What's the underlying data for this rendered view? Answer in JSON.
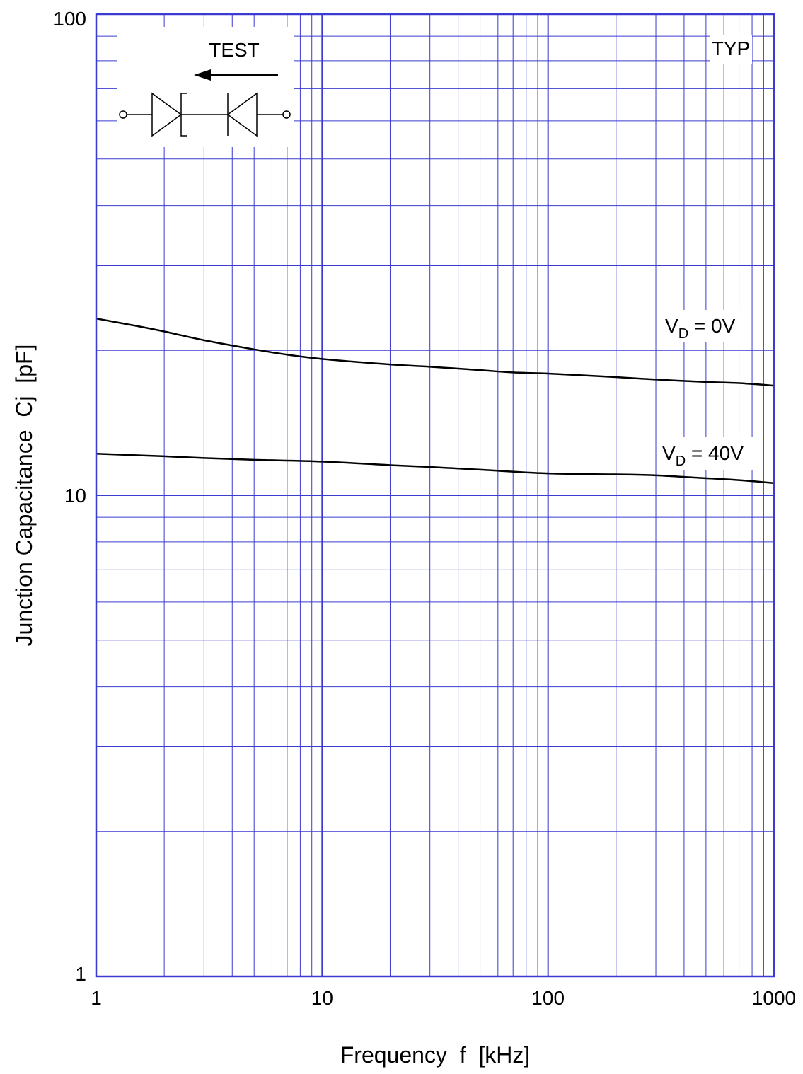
{
  "chart_data": {
    "type": "line",
    "title": "",
    "xlabel": "Frequency  f  [kHz]",
    "ylabel": "Junction Capacitance  Cj  [pF]",
    "x_scale": "log",
    "y_scale": "log",
    "xlim": [
      1,
      1000
    ],
    "ylim": [
      1,
      100
    ],
    "grid": true,
    "x_tick_labels": [
      "1",
      "10",
      "100",
      "1000"
    ],
    "y_tick_labels": [
      "1",
      "10",
      "100"
    ],
    "x_ticks": [
      1,
      10,
      100,
      1000
    ],
    "y_ticks": [
      1,
      10,
      100
    ],
    "annotations": {
      "typ": "TYP",
      "test": "TEST"
    },
    "series": [
      {
        "name": "VD = 0V",
        "label_main": "V",
        "label_sub": "D",
        "label_rest": " = 0V",
        "x": [
          1,
          1.5,
          2,
          3,
          5,
          7,
          10,
          20,
          30,
          50,
          70,
          100,
          200,
          300,
          500,
          700,
          1000
        ],
        "y": [
          23.3,
          22.5,
          21.9,
          21.0,
          20.1,
          19.6,
          19.2,
          18.7,
          18.5,
          18.2,
          18.0,
          17.9,
          17.6,
          17.4,
          17.2,
          17.1,
          16.9
        ]
      },
      {
        "name": "VD = 40V",
        "label_main": "V",
        "label_sub": "D",
        "label_rest": " = 40V",
        "x": [
          1,
          2,
          3,
          5,
          10,
          20,
          30,
          50,
          100,
          200,
          300,
          500,
          700,
          1000
        ],
        "y": [
          12.2,
          12.05,
          11.95,
          11.85,
          11.75,
          11.55,
          11.45,
          11.3,
          11.1,
          11.05,
          11.0,
          10.85,
          10.75,
          10.6
        ]
      }
    ],
    "colors": {
      "grid": "#3b3bd1",
      "frame": "#3b3bd1",
      "curve": "#000000"
    }
  }
}
